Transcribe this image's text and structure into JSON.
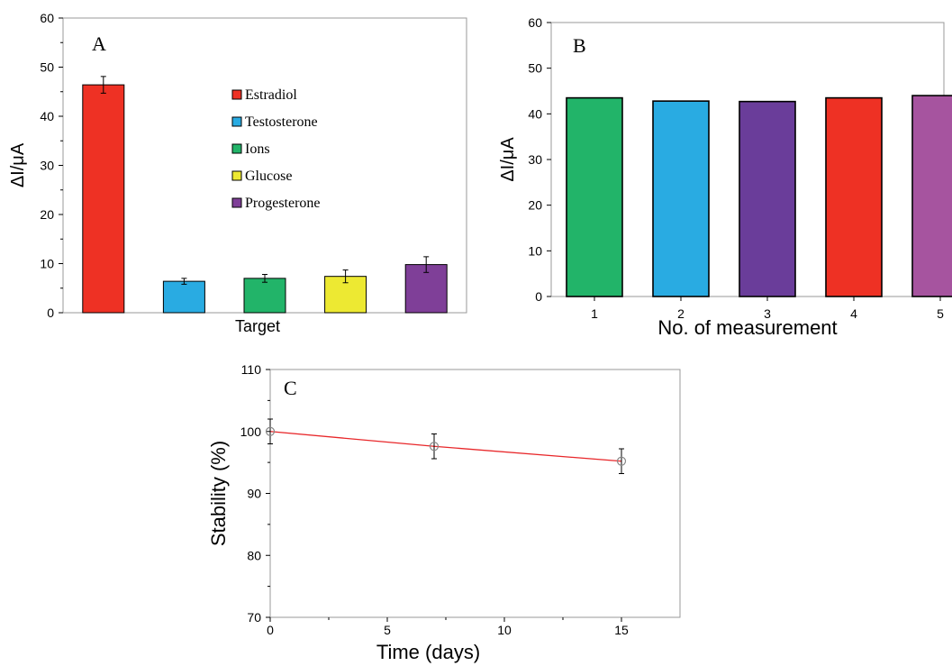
{
  "chart_data": [
    {
      "panel": "A",
      "type": "bar",
      "categories": [
        "Estradiol",
        "Testosterone",
        "Ions",
        "Glucose",
        "Progesterone"
      ],
      "values": [
        46.4,
        6.4,
        7.0,
        7.4,
        9.8
      ],
      "errors": [
        1.7,
        0.6,
        0.8,
        1.3,
        1.6
      ],
      "colors": [
        "#ee3124",
        "#29abe2",
        "#22b469",
        "#ede932",
        "#7f3f98"
      ],
      "xlabel": "Target",
      "ylabel": "ΔI/μA",
      "ylim": [
        0,
        60
      ],
      "yticks": [
        0,
        10,
        20,
        30,
        40,
        50,
        60
      ],
      "legend": [
        "Estradiol",
        "Testosterone",
        "Ions",
        "Glucose",
        "Progesterone"
      ],
      "legend_position": "center-right",
      "grid": false
    },
    {
      "panel": "B",
      "type": "bar",
      "categories": [
        "1",
        "2",
        "3",
        "4",
        "5"
      ],
      "values": [
        43.5,
        42.8,
        42.7,
        43.5,
        44.0
      ],
      "colors": [
        "#22b469",
        "#29abe2",
        "#6a3d9a",
        "#ee3124",
        "#a6549f"
      ],
      "xlabel": "No. of measurement",
      "ylabel": "ΔI/μA",
      "ylim": [
        0,
        60
      ],
      "yticks": [
        0,
        10,
        20,
        30,
        40,
        50,
        60
      ],
      "grid": false
    },
    {
      "panel": "C",
      "type": "line",
      "x": [
        0,
        7,
        15
      ],
      "y": [
        100,
        97.6,
        95.2
      ],
      "errors": [
        2.0,
        2.0,
        2.0
      ],
      "line_color": "#e8272a",
      "marker_color": "#888888",
      "xlabel": "Time (days)",
      "ylabel": "Stability (%)",
      "xlim": [
        0,
        17.5
      ],
      "ylim": [
        70,
        110
      ],
      "xticks": [
        0,
        5,
        10,
        15
      ],
      "yticks": [
        70,
        80,
        90,
        100,
        110
      ],
      "grid": false
    }
  ]
}
